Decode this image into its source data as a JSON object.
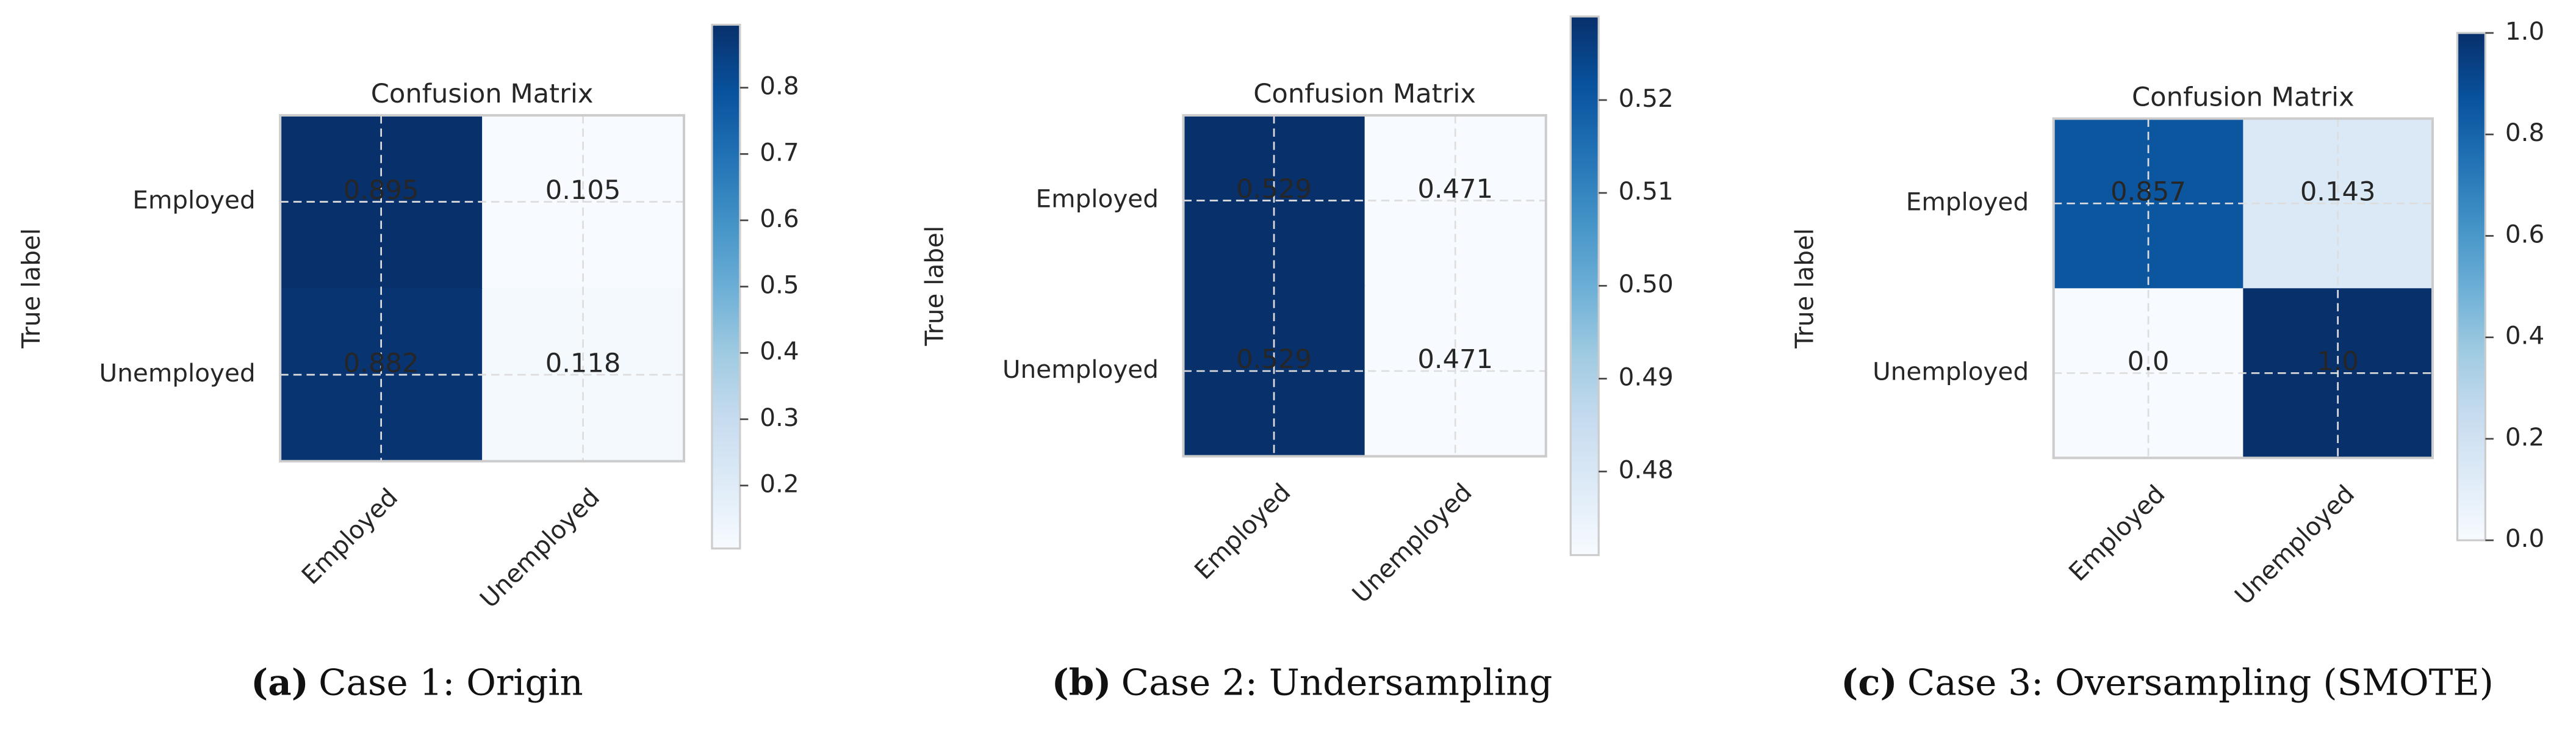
{
  "chart_data": [
    {
      "type": "heatmap",
      "title": "Confusion Matrix",
      "ylabel": "True label",
      "caption_label": "(a)",
      "caption": "Case 1: Origin",
      "x_categories": [
        "Employed",
        "Unemployed"
      ],
      "y_categories": [
        "Employed",
        "Unemployed"
      ],
      "values": [
        [
          0.895,
          0.105
        ],
        [
          0.882,
          0.118
        ]
      ],
      "clim": [
        0.105,
        0.895
      ],
      "cticks": [
        0.2,
        0.3,
        0.4,
        0.5,
        0.6,
        0.7,
        0.8
      ],
      "colormap": [
        "#f7fbff",
        "#deebf7",
        "#c6dbef",
        "#9ecae1",
        "#6baed6",
        "#4292c6",
        "#2171b5",
        "#08519c",
        "#08306b"
      ],
      "grid": true
    },
    {
      "type": "heatmap",
      "title": "Confusion Matrix",
      "ylabel": "True label",
      "caption_label": "(b)",
      "caption": "Case 2: Undersampling",
      "x_categories": [
        "Employed",
        "Unemployed"
      ],
      "y_categories": [
        "Employed",
        "Unemployed"
      ],
      "values": [
        [
          0.529,
          0.471
        ],
        [
          0.529,
          0.471
        ]
      ],
      "clim": [
        0.471,
        0.529
      ],
      "cticks": [
        0.48,
        0.49,
        {
          "value": 0.5,
          "label": "0.50"
        },
        0.51,
        0.52
      ],
      "colormap": [
        "#f7fbff",
        "#deebf7",
        "#c6dbef",
        "#9ecae1",
        "#6baed6",
        "#4292c6",
        "#2171b5",
        "#08519c",
        "#08306b"
      ],
      "grid": true
    },
    {
      "type": "heatmap",
      "title": "Confusion Matrix",
      "ylabel": "True label",
      "caption_label": "(c)",
      "caption": "Case 3: Oversampling (SMOTE)",
      "x_categories": [
        "Employed",
        "Unemployed"
      ],
      "y_categories": [
        "Employed",
        "Unemployed"
      ],
      "values": [
        [
          0.857,
          0.143
        ],
        [
          0,
          1
        ]
      ],
      "value_labels": [
        [
          "0.857",
          "0.143"
        ],
        [
          "0.0",
          "1.0"
        ]
      ],
      "clim": [
        0,
        1
      ],
      "cticks": [
        {
          "value": 0,
          "label": "0.0"
        },
        0.2,
        0.4,
        0.6,
        0.8,
        {
          "value": 1,
          "label": "1.0"
        }
      ],
      "colormap": [
        "#f7fbff",
        "#deebf7",
        "#c6dbef",
        "#9ecae1",
        "#6baed6",
        "#4292c6",
        "#2171b5",
        "#08519c",
        "#08306b"
      ],
      "grid": true
    }
  ]
}
